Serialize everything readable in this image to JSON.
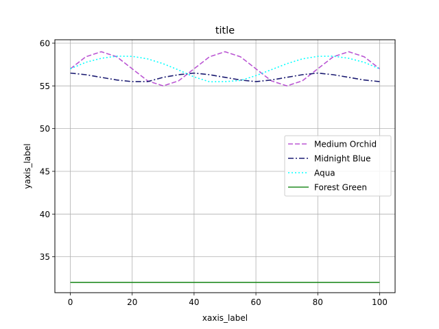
{
  "chart_data": {
    "type": "line",
    "title": "title",
    "xlabel": "xaxis_label",
    "ylabel": "yaxis_label",
    "xlim": [
      -5,
      105
    ],
    "ylim": [
      30.8,
      60.4
    ],
    "xticks": [
      0,
      20,
      40,
      60,
      80,
      100
    ],
    "yticks": [
      35,
      40,
      45,
      50,
      55,
      60
    ],
    "grid": true,
    "legend_position": "center-right",
    "x": [
      0,
      5,
      10,
      15,
      20,
      25,
      30,
      35,
      40,
      45,
      50,
      55,
      60,
      65,
      70,
      75,
      80,
      85,
      90,
      95,
      100
    ],
    "series": [
      {
        "name": "Medium Orchid",
        "color": "#ba55d3",
        "style": "dashed",
        "values": [
          57.0,
          58.41,
          59.0,
          58.41,
          57.0,
          55.59,
          55.0,
          55.59,
          57.0,
          58.41,
          59.0,
          58.41,
          57.0,
          55.59,
          55.0,
          55.59,
          57.0,
          58.41,
          59.0,
          58.41,
          57.0
        ]
      },
      {
        "name": "Midnight Blue",
        "color": "#191970",
        "style": "dashdot",
        "values": [
          56.5,
          56.31,
          56.0,
          55.69,
          55.5,
          55.5,
          56.0,
          56.31,
          56.5,
          56.31,
          56.0,
          55.69,
          55.5,
          55.69,
          56.0,
          56.31,
          56.5,
          56.31,
          56.0,
          55.69,
          55.5
        ]
      },
      {
        "name": "Aqua",
        "color": "#00ffff",
        "style": "dotted",
        "values": [
          57.0,
          57.76,
          58.23,
          58.48,
          58.46,
          58.16,
          57.6,
          56.86,
          56.05,
          55.48,
          55.5,
          55.64,
          56.2,
          56.9,
          57.6,
          58.16,
          58.46,
          58.48,
          58.23,
          57.76,
          57.0
        ]
      },
      {
        "name": "Forest Green",
        "color": "#228b22",
        "style": "solid",
        "values": [
          32,
          32,
          32,
          32,
          32,
          32,
          32,
          32,
          32,
          32,
          32,
          32,
          32,
          32,
          32,
          32,
          32,
          32,
          32,
          32,
          32
        ]
      }
    ]
  }
}
